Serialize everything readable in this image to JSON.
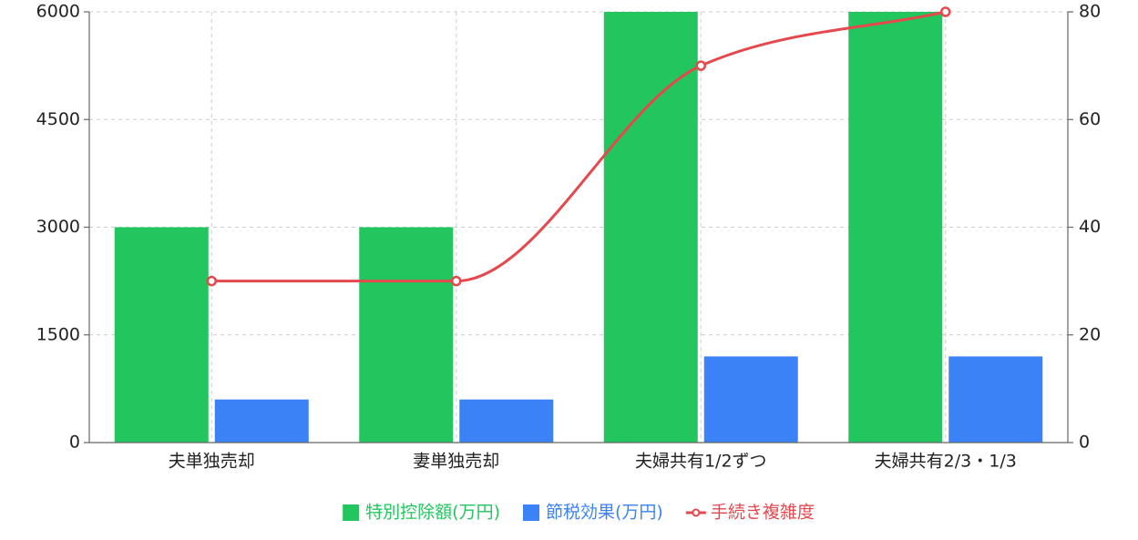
{
  "chart_data": {
    "type": "bar",
    "categories": [
      "夫単独売却",
      "妻単独売却",
      "夫婦共有1/2ずつ",
      "夫婦共有2/3・1/3"
    ],
    "series": [
      {
        "name": "特別控除額(万円)",
        "color": "#22c55e",
        "values": [
          3000,
          3000,
          6000,
          6000
        ]
      },
      {
        "name": "節税効果(万円)",
        "color": "#3b82f6",
        "values": [
          600,
          600,
          1200,
          1200
        ]
      },
      {
        "name": "手続き複雑度",
        "color": "#e5484d",
        "type": "line",
        "axis": "y2",
        "values": [
          30,
          30,
          70,
          80
        ]
      }
    ],
    "ylim": [
      0,
      6000
    ],
    "yticks": [
      0,
      1500,
      3000,
      4500,
      6000
    ],
    "y2lim": [
      0,
      80
    ],
    "y2ticks": [
      0,
      20,
      40,
      60,
      80
    ],
    "grid": true,
    "legend": "bottom"
  }
}
